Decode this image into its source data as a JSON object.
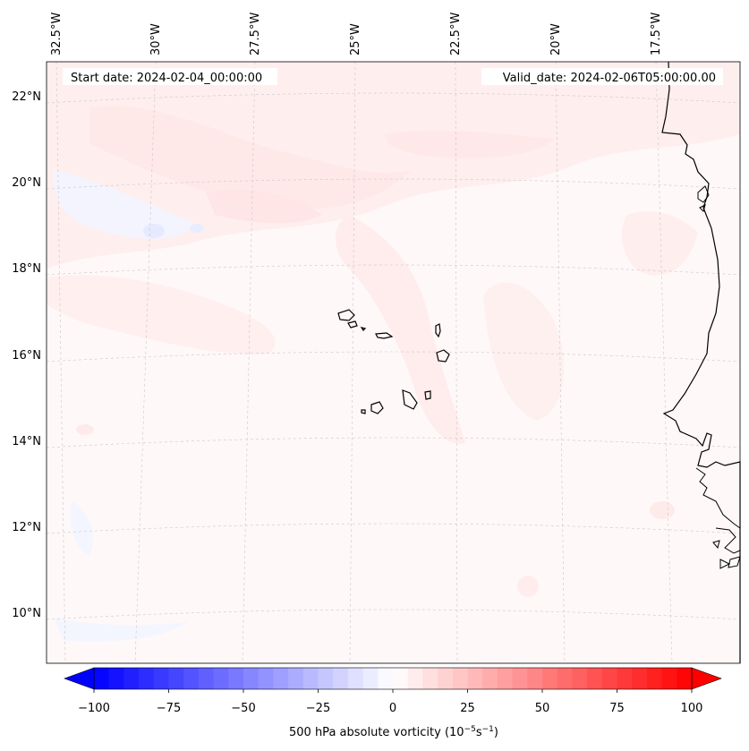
{
  "map": {
    "start_label": "Start date: 2024-02-04_00:00:00",
    "valid_label": "Valid_date: 2024-02-06T05:00:00.00",
    "lon_labels": [
      "32.5°W",
      "30°W",
      "27.5°W",
      "25°W",
      "22.5°W",
      "20°W",
      "17.5°W"
    ],
    "lat_labels": [
      "22°N",
      "20°N",
      "18°N",
      "16°N",
      "14°N",
      "12°N",
      "10°N"
    ],
    "field_name": "500 hPa absolute vorticity",
    "coastline_color": "#000000",
    "gridline_color": "#c8c8c8"
  },
  "colorbar": {
    "label_text": "500 hPa absolute vorticity (10",
    "label_exp1": "−5",
    "label_mid": "s",
    "label_exp2": "−1",
    "label_close": ")",
    "ticks": [
      "−100",
      "−75",
      "−50",
      "−25",
      "0",
      "25",
      "50",
      "75",
      "100"
    ],
    "tick_values": [
      -100,
      -75,
      -50,
      -25,
      0,
      25,
      50,
      75,
      100
    ],
    "vmin": -100,
    "vmax": 100,
    "low_color": "#0000ff",
    "mid_color": "#ffffff",
    "high_color": "#ff0000",
    "levels": 41,
    "extend": "both"
  }
}
